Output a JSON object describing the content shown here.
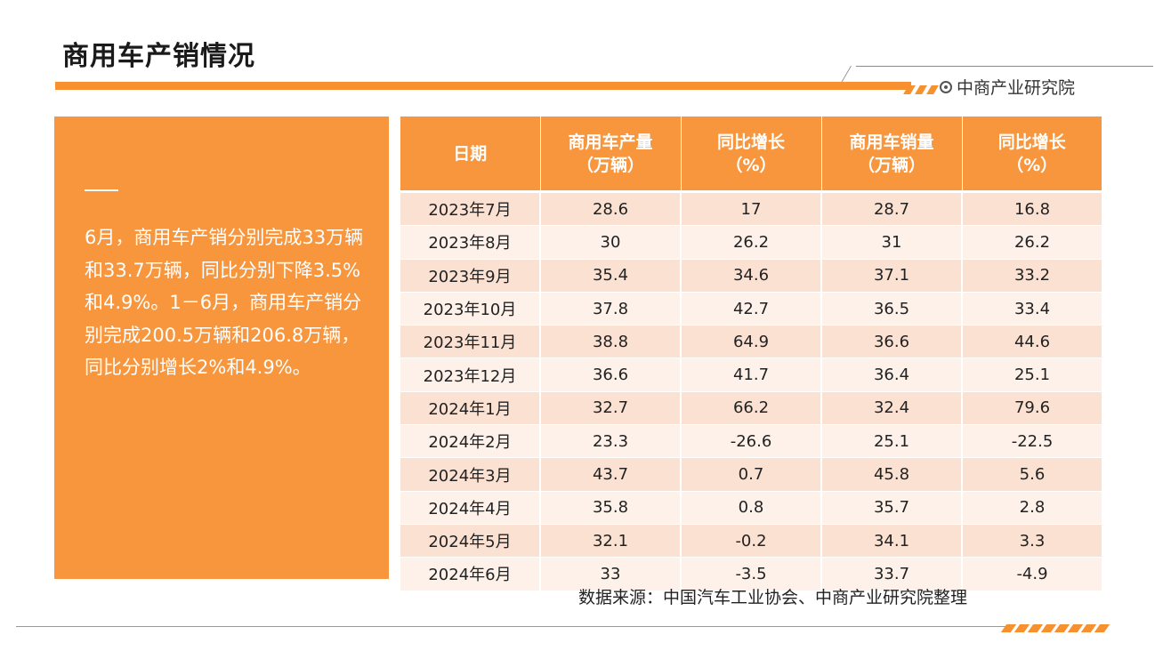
{
  "title": "商用车产销情况",
  "brand": "中商产业研究院",
  "summary": "6月，商用车产销分别完成33万辆和33.7万辆，同比分别下降3.5%和4.9%。1－6月，商用车产销分别完成200.5万辆和206.8万辆，同比分别增长2%和4.9%。",
  "table": {
    "headers": [
      [
        "日期"
      ],
      [
        "商用车产量",
        "（万辆）"
      ],
      [
        "同比增长",
        "（%）"
      ],
      [
        "商用车销量",
        "（万辆）"
      ],
      [
        "同比增长",
        "（%）"
      ]
    ],
    "rows": [
      [
        "2023年7月",
        "28.6",
        "17",
        "28.7",
        "16.8"
      ],
      [
        "2023年8月",
        "30",
        "26.2",
        "31",
        "26.2"
      ],
      [
        "2023年9月",
        "35.4",
        "34.6",
        "37.1",
        "33.2"
      ],
      [
        "2023年10月",
        "37.8",
        "42.7",
        "36.5",
        "33.4"
      ],
      [
        "2023年11月",
        "38.8",
        "64.9",
        "36.6",
        "44.6"
      ],
      [
        "2023年12月",
        "36.6",
        "41.7",
        "36.4",
        "25.1"
      ],
      [
        "2024年1月",
        "32.7",
        "66.2",
        "32.4",
        "79.6"
      ],
      [
        "2024年2月",
        "23.3",
        "-26.6",
        "25.1",
        "-22.5"
      ],
      [
        "2024年3月",
        "43.7",
        "0.7",
        "45.8",
        "5.6"
      ],
      [
        "2024年4月",
        "35.8",
        "0.8",
        "35.7",
        "2.8"
      ],
      [
        "2024年5月",
        "32.1",
        "-0.2",
        "34.1",
        "3.3"
      ],
      [
        "2024年6月",
        "33",
        "-3.5",
        "33.7",
        "-4.9"
      ]
    ]
  },
  "source": "数据来源：中国汽车工业协会、中商产业研究院整理",
  "colors": {
    "accent": "#F7963D",
    "row_odd": "#FBE1D2",
    "row_even": "#FDF1EA"
  }
}
